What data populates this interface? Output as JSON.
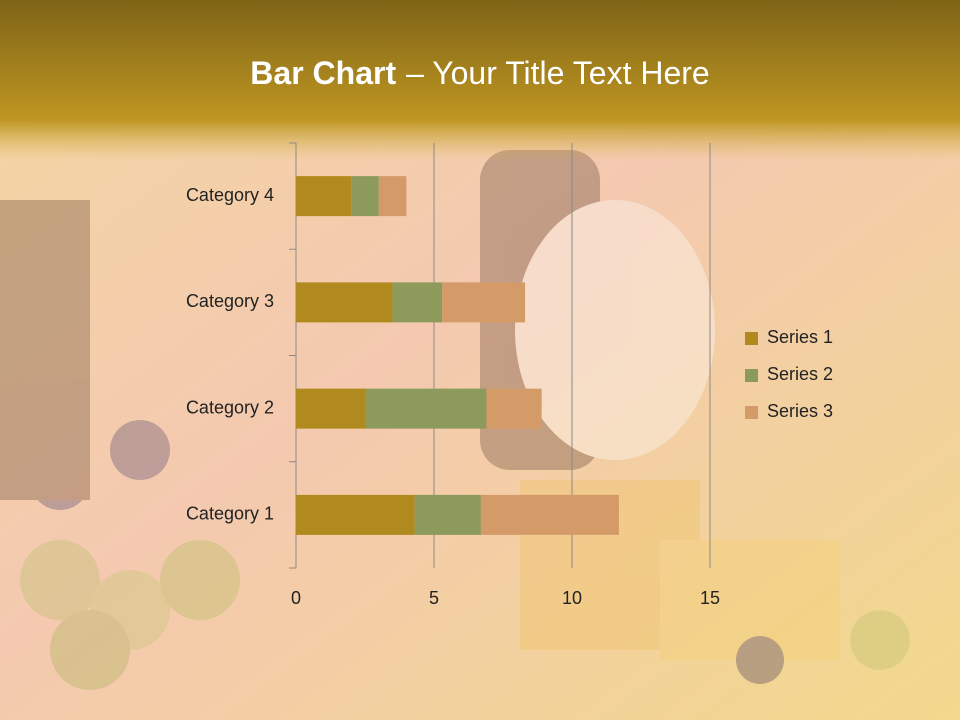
{
  "chart_data": {
    "type": "stacked-bar-horizontal",
    "title": "Bar Chart",
    "title_rest": "– Your Title Text Here",
    "categories": [
      "Category 1",
      "Category 2",
      "Category 3",
      "Category 4"
    ],
    "series": [
      {
        "name": "Series 1",
        "color": "#b08a1e",
        "values": [
          4.3,
          2.5,
          3.5,
          2
        ]
      },
      {
        "name": "Series 2",
        "color": "#8c9a5c",
        "values": [
          2.4,
          4.4,
          1.8,
          1
        ]
      },
      {
        "name": "Series 3",
        "color": "#d49a68",
        "values": [
          5,
          2,
          3,
          1
        ]
      }
    ],
    "xlim": [
      0,
      15
    ],
    "xticks": [
      0,
      5,
      10,
      15
    ],
    "grid": true,
    "legend": "right"
  }
}
